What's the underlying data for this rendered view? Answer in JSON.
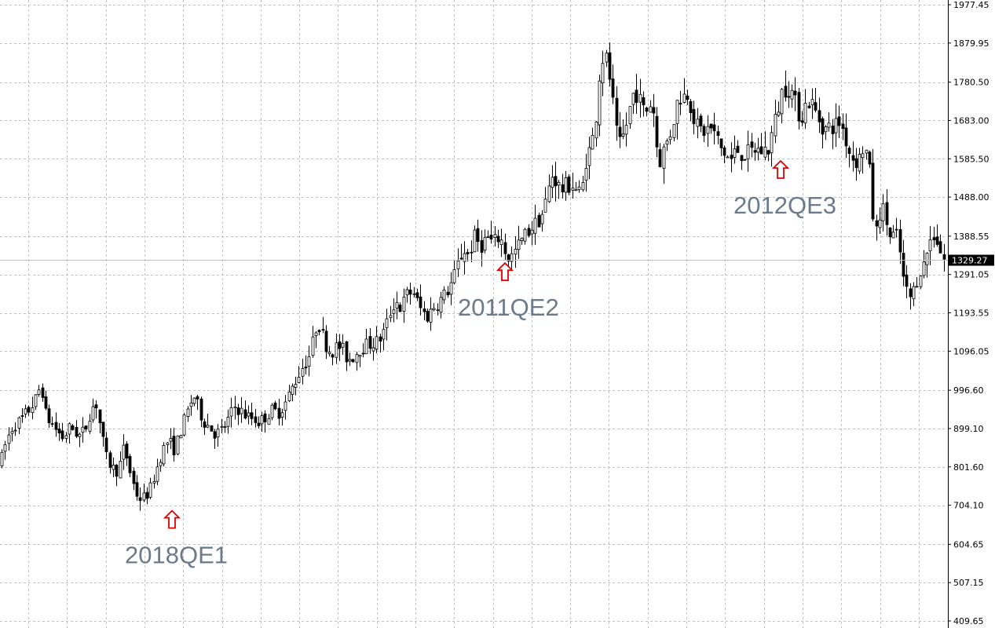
{
  "colors": {
    "candle": "#000000",
    "grid": "#c0c0c0",
    "axis": "#000000",
    "price_line": "#c0c0c0",
    "price_label_bg": "#000000",
    "price_label_text": "#ffffff",
    "arrow": "#e00000",
    "annotation_text": "#6b7b8c"
  },
  "chart_data": {
    "type": "candlestick",
    "title": "",
    "xlabel": "",
    "ylabel": "",
    "ylim": [
      409.65,
      1977.45
    ],
    "grid": true,
    "y_ticks": [
      "1977.45",
      "1879.95",
      "1780.50",
      "1683.00",
      "1585.50",
      "1488.00",
      "1388.55",
      "1291.05",
      "1193.55",
      "1096.05",
      "996.60",
      "899.10",
      "801.60",
      "704.10",
      "604.65",
      "507.15",
      "409.65"
    ],
    "current_price": {
      "value": 1329.27,
      "label": "1329.27"
    },
    "close_path": [
      [
        0,
        810
      ],
      [
        8,
        870
      ],
      [
        16,
        905
      ],
      [
        26,
        920
      ],
      [
        36,
        945
      ],
      [
        46,
        975
      ],
      [
        52,
        1015
      ],
      [
        58,
        935
      ],
      [
        64,
        915
      ],
      [
        72,
        895
      ],
      [
        80,
        875
      ],
      [
        90,
        905
      ],
      [
        100,
        880
      ],
      [
        108,
        895
      ],
      [
        116,
        950
      ],
      [
        122,
        965
      ],
      [
        128,
        900
      ],
      [
        134,
        830
      ],
      [
        142,
        800
      ],
      [
        150,
        790
      ],
      [
        158,
        855
      ],
      [
        164,
        800
      ],
      [
        170,
        755
      ],
      [
        176,
        720
      ],
      [
        184,
        725
      ],
      [
        190,
        740
      ],
      [
        198,
        790
      ],
      [
        206,
        840
      ],
      [
        214,
        870
      ],
      [
        222,
        845
      ],
      [
        230,
        895
      ],
      [
        238,
        940
      ],
      [
        246,
        985
      ],
      [
        252,
        955
      ],
      [
        258,
        920
      ],
      [
        266,
        905
      ],
      [
        274,
        885
      ],
      [
        282,
        895
      ],
      [
        290,
        920
      ],
      [
        298,
        955
      ],
      [
        306,
        945
      ],
      [
        314,
        930
      ],
      [
        322,
        925
      ],
      [
        330,
        915
      ],
      [
        338,
        930
      ],
      [
        346,
        945
      ],
      [
        354,
        940
      ],
      [
        362,
        960
      ],
      [
        370,
        995
      ],
      [
        378,
        1030
      ],
      [
        386,
        1060
      ],
      [
        392,
        1075
      ],
      [
        398,
        1120
      ],
      [
        404,
        1175
      ],
      [
        410,
        1140
      ],
      [
        416,
        1105
      ],
      [
        422,
        1095
      ],
      [
        430,
        1110
      ],
      [
        436,
        1100
      ],
      [
        442,
        1075
      ],
      [
        448,
        1080
      ],
      [
        456,
        1100
      ],
      [
        464,
        1110
      ],
      [
        472,
        1115
      ],
      [
        480,
        1120
      ],
      [
        486,
        1135
      ],
      [
        492,
        1165
      ],
      [
        498,
        1205
      ],
      [
        504,
        1225
      ],
      [
        510,
        1205
      ],
      [
        518,
        1240
      ],
      [
        526,
        1250
      ],
      [
        532,
        1215
      ],
      [
        538,
        1195
      ],
      [
        544,
        1185
      ],
      [
        552,
        1210
      ],
      [
        560,
        1225
      ],
      [
        568,
        1245
      ],
      [
        576,
        1275
      ],
      [
        584,
        1325
      ],
      [
        590,
        1355
      ],
      [
        596,
        1340
      ],
      [
        604,
        1385
      ],
      [
        612,
        1365
      ],
      [
        620,
        1385
      ],
      [
        628,
        1370
      ],
      [
        636,
        1390
      ],
      [
        642,
        1355
      ],
      [
        648,
        1330
      ],
      [
        654,
        1345
      ],
      [
        660,
        1365
      ],
      [
        668,
        1390
      ],
      [
        676,
        1410
      ],
      [
        684,
        1425
      ],
      [
        690,
        1445
      ],
      [
        696,
        1485
      ],
      [
        702,
        1545
      ],
      [
        708,
        1530
      ],
      [
        714,
        1505
      ],
      [
        720,
        1515
      ],
      [
        728,
        1520
      ],
      [
        734,
        1505
      ],
      [
        740,
        1495
      ],
      [
        746,
        1585
      ],
      [
        752,
        1615
      ],
      [
        756,
        1650
      ],
      [
        760,
        1720
      ],
      [
        764,
        1820
      ],
      [
        768,
        1845
      ],
      [
        774,
        1830
      ],
      [
        778,
        1755
      ],
      [
        782,
        1700
      ],
      [
        786,
        1620
      ],
      [
        790,
        1620
      ],
      [
        796,
        1660
      ],
      [
        802,
        1715
      ],
      [
        808,
        1765
      ],
      [
        814,
        1735
      ],
      [
        820,
        1705
      ],
      [
        826,
        1715
      ],
      [
        830,
        1745
      ],
      [
        836,
        1620
      ],
      [
        840,
        1580
      ],
      [
        846,
        1615
      ],
      [
        852,
        1640
      ],
      [
        858,
        1690
      ],
      [
        864,
        1745
      ],
      [
        870,
        1745
      ],
      [
        876,
        1755
      ],
      [
        882,
        1700
      ],
      [
        888,
        1665
      ],
      [
        896,
        1655
      ],
      [
        904,
        1665
      ],
      [
        912,
        1640
      ],
      [
        918,
        1610
      ],
      [
        924,
        1595
      ],
      [
        930,
        1580
      ],
      [
        938,
        1610
      ],
      [
        946,
        1595
      ],
      [
        954,
        1600
      ],
      [
        962,
        1610
      ],
      [
        970,
        1605
      ],
      [
        978,
        1610
      ],
      [
        984,
        1660
      ],
      [
        990,
        1710
      ],
      [
        996,
        1760
      ],
      [
        1002,
        1770
      ],
      [
        1008,
        1755
      ],
      [
        1014,
        1715
      ],
      [
        1020,
        1690
      ],
      [
        1026,
        1725
      ],
      [
        1032,
        1735
      ],
      [
        1038,
        1705
      ],
      [
        1044,
        1680
      ],
      [
        1050,
        1660
      ],
      [
        1056,
        1665
      ],
      [
        1062,
        1670
      ],
      [
        1070,
        1680
      ],
      [
        1076,
        1640
      ],
      [
        1082,
        1600
      ],
      [
        1088,
        1580
      ],
      [
        1094,
        1585
      ],
      [
        1100,
        1620
      ],
      [
        1106,
        1580
      ],
      [
        1110,
        1475
      ],
      [
        1114,
        1380
      ],
      [
        1120,
        1450
      ],
      [
        1126,
        1455
      ],
      [
        1132,
        1385
      ],
      [
        1138,
        1390
      ],
      [
        1144,
        1385
      ],
      [
        1148,
        1300
      ],
      [
        1152,
        1260
      ],
      [
        1158,
        1230
      ],
      [
        1164,
        1255
      ],
      [
        1170,
        1300
      ],
      [
        1176,
        1315
      ],
      [
        1182,
        1365
      ],
      [
        1188,
        1395
      ],
      [
        1194,
        1375
      ],
      [
        1200,
        1330
      ],
      [
        1205,
        1329
      ]
    ],
    "annotations": [
      {
        "label": "2018QE1",
        "x": 219,
        "value": 720
      },
      {
        "label": "2011QE2",
        "x": 643,
        "value": 1350
      },
      {
        "label": "2012QE3",
        "x": 994,
        "value": 1610
      }
    ]
  }
}
